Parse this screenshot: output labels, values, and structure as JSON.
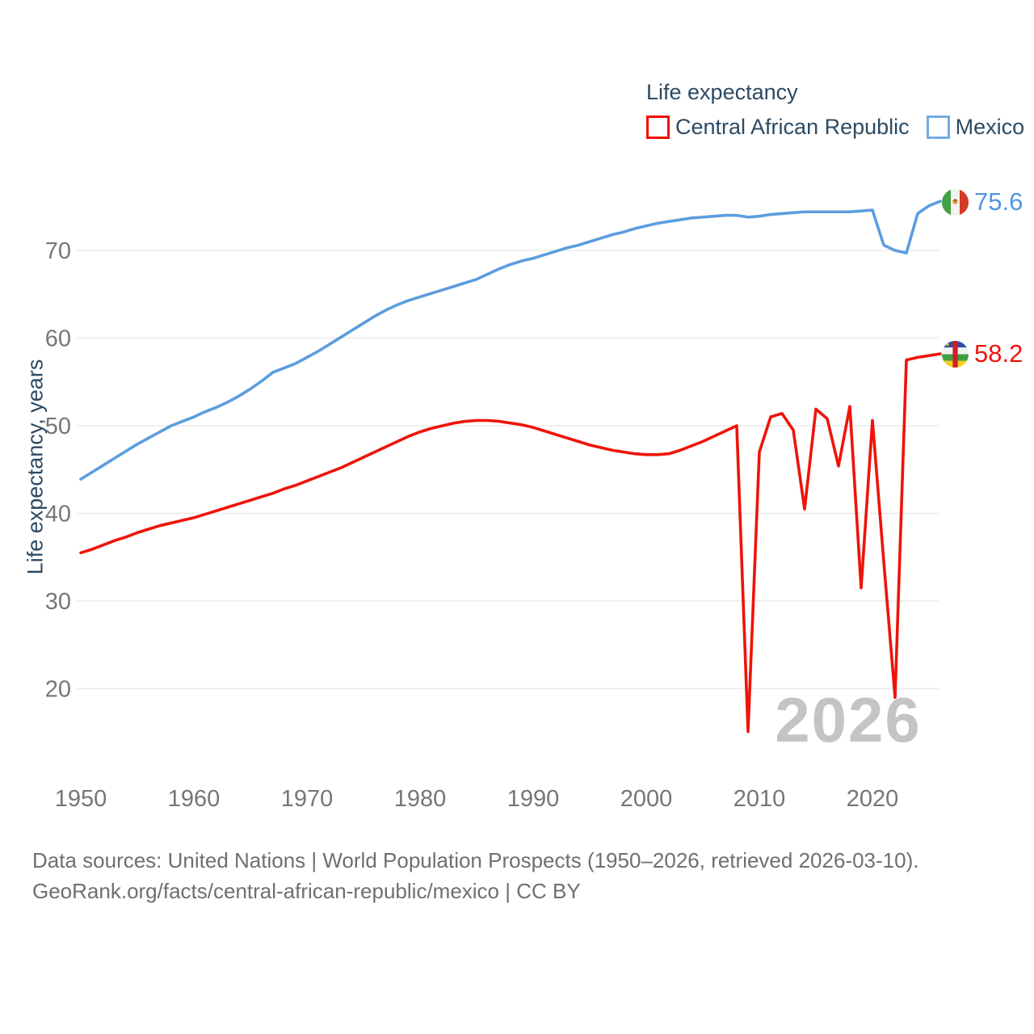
{
  "legend": {
    "title": "Life expectancy",
    "series": [
      {
        "label": "Central African Republic",
        "color": "#ee1409"
      },
      {
        "label": "Mexico",
        "color": "#5c9dde"
      }
    ]
  },
  "y_axis": {
    "title": "Life expectancy, years",
    "ticks": [
      20,
      30,
      40,
      50,
      60,
      70
    ]
  },
  "x_axis": {
    "ticks": [
      1950,
      1960,
      1970,
      1980,
      1990,
      2000,
      2010,
      2020
    ]
  },
  "end_labels": [
    {
      "series": "Mexico",
      "value": "75.6",
      "flag": "mexico-flag"
    },
    {
      "series": "Central African Republic",
      "value": "58.2",
      "flag": "central-african-republic-flag"
    }
  ],
  "watermark": "2026",
  "footer": {
    "line1": "Data sources: United Nations | World Population Prospects (1950–2026, retrieved 2026-03-10).",
    "line2": "GeoRank.org/facts/central-african-republic/mexico | CC BY"
  },
  "chart_data": {
    "type": "line",
    "title": "Life expectancy",
    "xlabel": "",
    "ylabel": "Life expectancy, years",
    "x_start": 1950,
    "x_end": 2026,
    "ylim": [
      13,
      78
    ],
    "yticks": [
      20,
      30,
      40,
      50,
      60,
      70
    ],
    "xticks": [
      1950,
      1960,
      1970,
      1980,
      1990,
      2000,
      2010,
      2020
    ],
    "grid": true,
    "legend_position": "top-right",
    "series": [
      {
        "name": "Mexico",
        "id": "mexico",
        "color": "#5c9dde",
        "end_value": 75.6,
        "values": [
          43.9,
          44.7,
          45.5,
          46.3,
          47.1,
          47.9,
          48.6,
          49.3,
          50.0,
          50.5,
          51.0,
          51.6,
          52.1,
          52.7,
          53.4,
          54.2,
          55.1,
          56.1,
          56.6,
          57.1,
          57.8,
          58.5,
          59.3,
          60.1,
          60.9,
          61.7,
          62.5,
          63.2,
          63.8,
          64.3,
          64.7,
          65.1,
          65.5,
          65.9,
          66.3,
          66.7,
          67.3,
          67.9,
          68.4,
          68.8,
          69.1,
          69.5,
          69.9,
          70.3,
          70.6,
          71.0,
          71.4,
          71.8,
          72.1,
          72.5,
          72.8,
          73.1,
          73.3,
          73.5,
          73.7,
          73.8,
          73.9,
          74.0,
          74.0,
          73.8,
          73.9,
          74.1,
          74.2,
          74.3,
          74.4,
          74.4,
          74.4,
          74.4,
          74.4,
          74.5,
          74.6,
          70.6,
          70.0,
          69.7,
          74.2,
          75.1,
          75.6
        ]
      },
      {
        "name": "Central African Republic",
        "id": "central-african-republic",
        "color": "#ee1409",
        "end_value": 58.2,
        "values": [
          35.5,
          35.9,
          36.4,
          36.9,
          37.3,
          37.8,
          38.2,
          38.6,
          38.9,
          39.2,
          39.5,
          39.9,
          40.3,
          40.7,
          41.1,
          41.5,
          41.9,
          42.3,
          42.8,
          43.2,
          43.7,
          44.2,
          44.7,
          45.2,
          45.8,
          46.4,
          47.0,
          47.6,
          48.2,
          48.8,
          49.3,
          49.7,
          50.0,
          50.3,
          50.5,
          50.6,
          50.6,
          50.5,
          50.3,
          50.1,
          49.8,
          49.4,
          49.0,
          48.6,
          48.2,
          47.8,
          47.5,
          47.2,
          47.0,
          46.8,
          46.7,
          46.7,
          46.8,
          47.2,
          47.7,
          48.2,
          48.8,
          49.4,
          50.0,
          15.1,
          47.0,
          51.0,
          51.4,
          49.5,
          40.5,
          51.9,
          50.8,
          45.4,
          52.2,
          31.5,
          50.6,
          34.5,
          19.0,
          57.5,
          57.8,
          58.0,
          58.2
        ]
      }
    ]
  }
}
